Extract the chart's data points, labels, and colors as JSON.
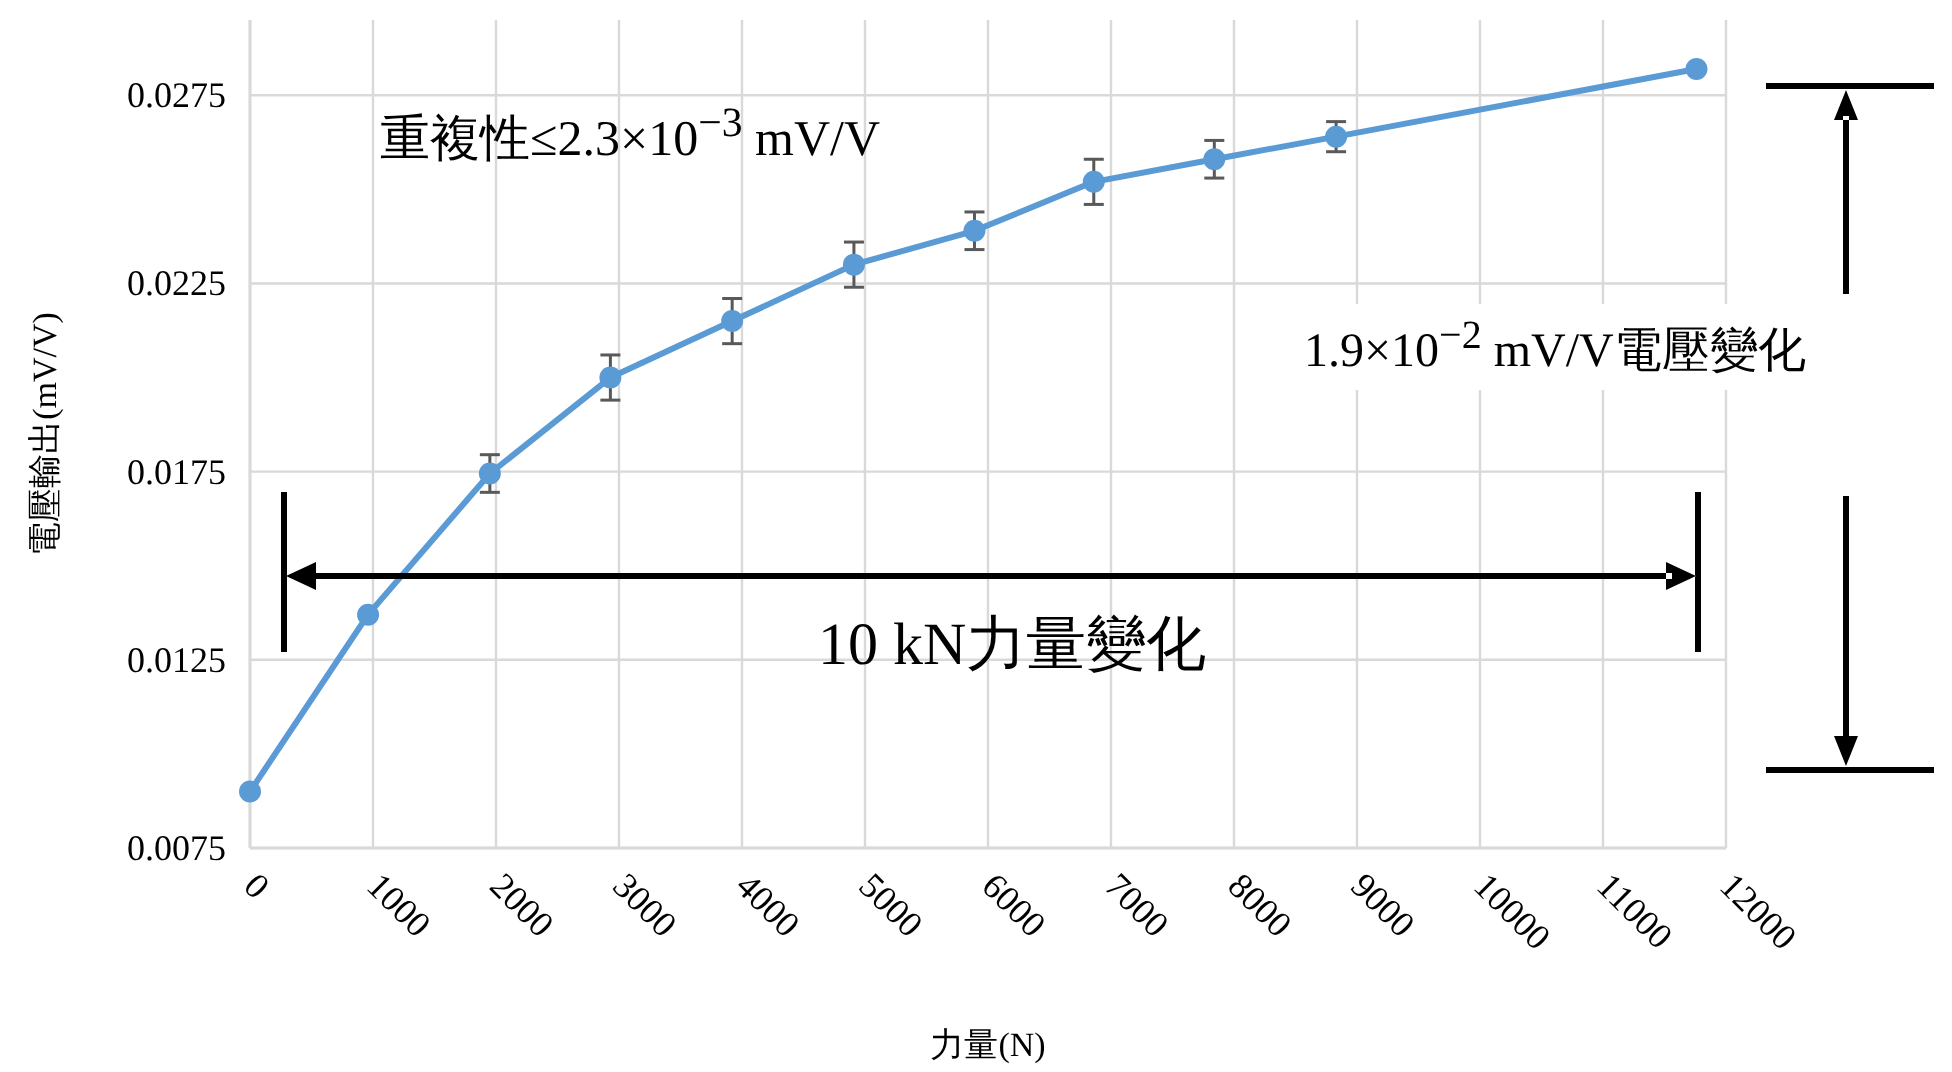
{
  "chart_data": {
    "type": "line",
    "xlabel": "力量(N)",
    "ylabel": "電壓輸出(mV/V)",
    "x": [
      0,
      960,
      1950,
      2930,
      3920,
      4910,
      5890,
      6860,
      7840,
      8830,
      11760
    ],
    "series": [
      {
        "color": "#5b9bd5",
        "values": [
          0.009,
          0.0137,
          0.01745,
          0.02,
          0.0215,
          0.023,
          0.0239,
          0.0252,
          0.0258,
          0.0264,
          0.0282
        ],
        "errors": [
          null,
          null,
          0.0005,
          0.0006,
          0.0006,
          0.0006,
          0.0005,
          0.0006,
          0.0005,
          0.0004,
          null
        ]
      }
    ],
    "xlim": [
      0,
      12000
    ],
    "xticks": [
      0,
      1000,
      2000,
      3000,
      4000,
      5000,
      6000,
      7000,
      8000,
      9000,
      10000,
      11000,
      12000
    ],
    "ylim": [
      0.0075,
      0.0295
    ],
    "yticks": [
      0.0075,
      0.0125,
      0.0175,
      0.0225,
      0.0275
    ],
    "grid": true,
    "marker": "circle",
    "annotations": [
      "重複性≤2.3×10$^{−3}$ mV/V",
      "10 kN力量變化",
      "1.9×10$^{−2}$ mV/V電壓變化"
    ]
  }
}
